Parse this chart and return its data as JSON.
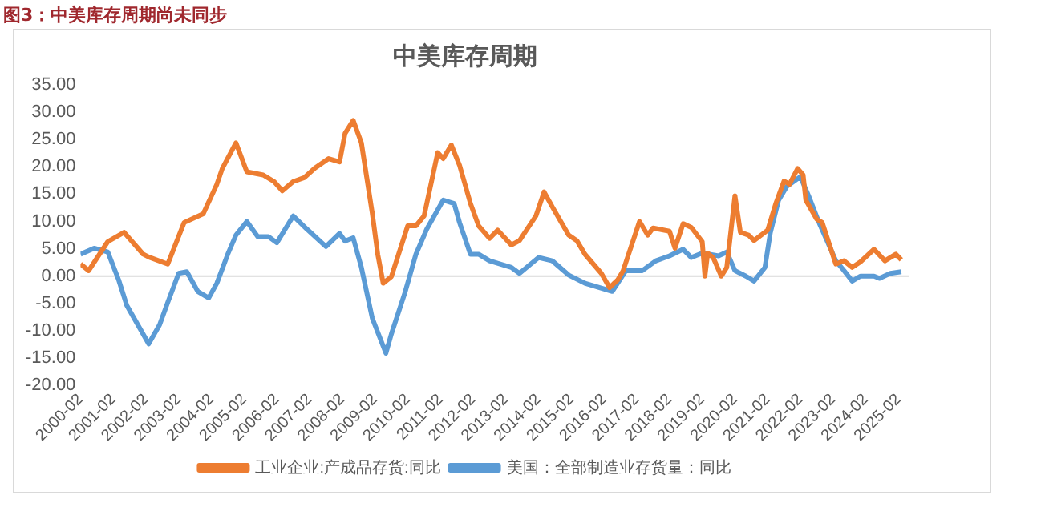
{
  "chart_data": {
    "type": "line",
    "title": "中美库存周期",
    "annotations": [
      "图3：中美库存周期尚未同步"
    ],
    "xlim": [
      "2000-02",
      "2025-06"
    ],
    "xticks": [
      "2000-02",
      "2001-02",
      "2002-02",
      "2003-02",
      "2004-02",
      "2005-02",
      "2006-02",
      "2007-02",
      "2008-02",
      "2009-02",
      "2010-02",
      "2011-02",
      "2012-02",
      "2013-02",
      "2014-02",
      "2015-02",
      "2016-02",
      "2017-02",
      "2018-02",
      "2019-02",
      "2020-02",
      "2021-02",
      "2022-02",
      "2023-02",
      "2024-02",
      "2025-02"
    ],
    "ylim": [
      -20,
      35
    ],
    "yticks": [
      {
        "value": -20,
        "label": "-20.00"
      },
      {
        "value": -15,
        "label": "-15.00"
      },
      {
        "value": -10,
        "label": "-10.00"
      },
      {
        "value": -5,
        "label": "-5.00"
      },
      {
        "value": 0,
        "label": "0.00"
      },
      {
        "value": 5,
        "label": "5.00"
      },
      {
        "value": 10,
        "label": "10.00"
      },
      {
        "value": 15,
        "label": "15.00"
      },
      {
        "value": 20,
        "label": "20.00"
      },
      {
        "value": 25,
        "label": "25.00"
      },
      {
        "value": 30,
        "label": "30.00"
      },
      {
        "value": 35,
        "label": "35.00"
      }
    ],
    "grid": false,
    "ref_lines": [
      {
        "axis": "y",
        "value": 0,
        "color": "#d9d9d9"
      }
    ],
    "legend": "bottom",
    "marker": "none",
    "line_style": "solid",
    "series": [
      {
        "name": "工业企业:产成品存货:同比",
        "color": "#ed7d31",
        "x": [
          "2000-02",
          "2000-05",
          "2000-12",
          "2001-06",
          "2002-01",
          "2002-03",
          "2002-10",
          "2003-04",
          "2003-11",
          "2004-04",
          "2004-06",
          "2004-11",
          "2005-03",
          "2005-09",
          "2006-01",
          "2006-04",
          "2006-08",
          "2006-12",
          "2007-04",
          "2007-09",
          "2008-01",
          "2008-03",
          "2008-06",
          "2008-09",
          "2009-01",
          "2009-03",
          "2009-05",
          "2009-08",
          "2010-02",
          "2010-05",
          "2010-08",
          "2011-01",
          "2011-03",
          "2011-06",
          "2011-09",
          "2012-01",
          "2012-04",
          "2012-08",
          "2012-11",
          "2013-04",
          "2013-07",
          "2014-01",
          "2014-04",
          "2014-07",
          "2015-01",
          "2015-04",
          "2015-07",
          "2016-01",
          "2016-04",
          "2016-07",
          "2016-09",
          "2017-03",
          "2017-06",
          "2017-08",
          "2018-02",
          "2018-04",
          "2018-07",
          "2018-10",
          "2019-02",
          "2019-03",
          "2019-04",
          "2019-06",
          "2019-09",
          "2019-11",
          "2020-02",
          "2020-04",
          "2020-07",
          "2020-09",
          "2021-02",
          "2021-05",
          "2021-08",
          "2021-10",
          "2022-01",
          "2022-03",
          "2022-04",
          "2022-08",
          "2022-10",
          "2023-03",
          "2023-06",
          "2023-09",
          "2023-12",
          "2024-05",
          "2024-09",
          "2025-01",
          "2025-03"
        ],
        "values": [
          2.2,
          1.0,
          6.3,
          8.0,
          4.0,
          3.5,
          2.2,
          9.8,
          11.4,
          16.8,
          19.7,
          24.4,
          19.1,
          18.5,
          17.3,
          15.6,
          17.3,
          18.0,
          19.8,
          21.5,
          20.9,
          26.1,
          28.5,
          24.4,
          11.5,
          4.0,
          -1.3,
          -0.1,
          9.2,
          9.2,
          11.0,
          22.6,
          21.5,
          24.0,
          20.3,
          13.3,
          9.2,
          6.9,
          8.4,
          5.7,
          6.5,
          11.0,
          15.4,
          12.7,
          7.5,
          6.5,
          4.0,
          0.5,
          -2.1,
          -0.7,
          1.0,
          10.0,
          7.5,
          8.8,
          8.2,
          5.1,
          9.6,
          8.9,
          6.3,
          0,
          4.2,
          3.4,
          0,
          1.6,
          14.7,
          8.0,
          7.5,
          6.5,
          8.4,
          13.3,
          17.4,
          16.8,
          19.7,
          18.5,
          13.9,
          10.4,
          9.8,
          2.2,
          2.8,
          1.6,
          2.6,
          4.9,
          2.8,
          4.0,
          3.0
        ]
      },
      {
        "name": "美国：全部制造业存货量：同比",
        "color": "#5b9bd5",
        "x": [
          "2000-02",
          "2000-07",
          "2000-12",
          "2001-04",
          "2001-07",
          "2002-03",
          "2002-07",
          "2002-10",
          "2003-02",
          "2003-05",
          "2003-09",
          "2004-01",
          "2004-04",
          "2004-08",
          "2004-11",
          "2005-03",
          "2005-07",
          "2005-11",
          "2006-02",
          "2006-08",
          "2007-01",
          "2007-08",
          "2008-01",
          "2008-03",
          "2008-06",
          "2008-09",
          "2009-01",
          "2009-06",
          "2009-08",
          "2010-01",
          "2010-05",
          "2010-09",
          "2011-03",
          "2011-07",
          "2011-09",
          "2012-01",
          "2012-04",
          "2012-08",
          "2013-04",
          "2013-07",
          "2014-02",
          "2014-07",
          "2015-01",
          "2015-07",
          "2016-05",
          "2016-10",
          "2017-04",
          "2017-09",
          "2018-02",
          "2018-07",
          "2018-10",
          "2019-02",
          "2019-08",
          "2019-11",
          "2020-02",
          "2020-06",
          "2020-09",
          "2021-01",
          "2021-03",
          "2021-06",
          "2021-09",
          "2022-02",
          "2022-05",
          "2022-09",
          "2023-03",
          "2023-06",
          "2023-09",
          "2023-12",
          "2024-05",
          "2024-07",
          "2024-11",
          "2025-03"
        ],
        "values": [
          4.0,
          5.1,
          4.4,
          -0.7,
          -5.4,
          -12.4,
          -8.9,
          -4.8,
          0.5,
          0.8,
          -2.8,
          -4.0,
          -1.3,
          4.0,
          7.5,
          10.0,
          7.2,
          7.2,
          6.1,
          11.0,
          8.6,
          5.4,
          7.8,
          6.4,
          7.0,
          1.6,
          -7.7,
          -14.1,
          -10.6,
          -3.0,
          4.0,
          8.6,
          13.9,
          13.3,
          9.8,
          4.0,
          4.0,
          2.8,
          1.6,
          0.5,
          3.4,
          2.8,
          0.2,
          -1.3,
          -2.8,
          1.0,
          1.0,
          2.8,
          3.7,
          4.9,
          3.4,
          4.2,
          3.7,
          4.4,
          1.0,
          0,
          -0.9,
          1.6,
          8.0,
          13.9,
          16.4,
          18.2,
          14.7,
          9.6,
          2.8,
          1.0,
          -0.9,
          0,
          0,
          -0.4,
          0.5,
          0.8
        ]
      }
    ]
  }
}
